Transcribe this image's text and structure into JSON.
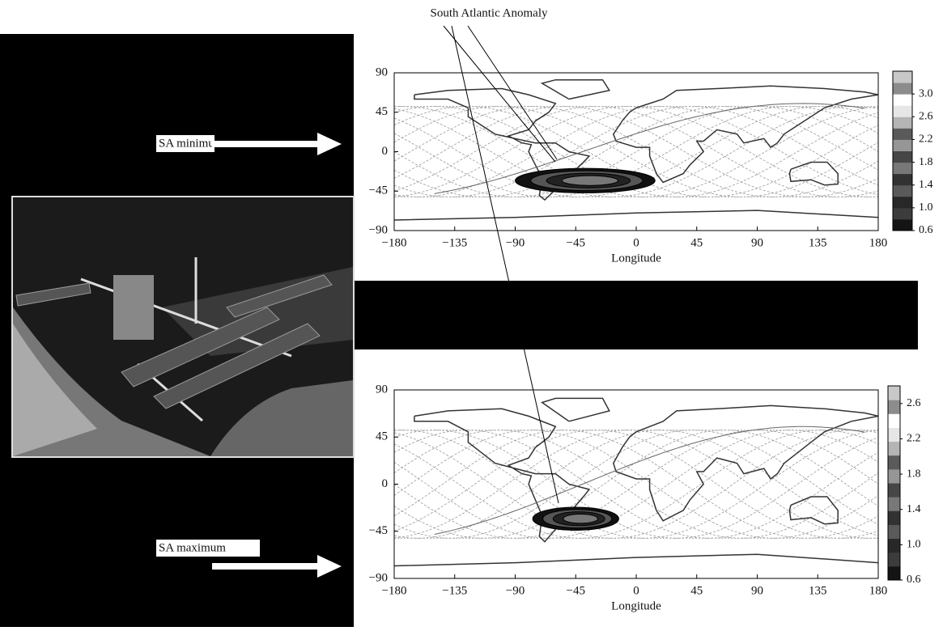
{
  "annotation": "South Atlantic Anomaly",
  "labels": [
    "SA minimum",
    "SA maximum"
  ],
  "panels": [
    {
      "xlabel": "Longitude",
      "xlim": [
        -180,
        180
      ],
      "ylim": [
        -90,
        90
      ],
      "xticks": [
        {
          "value": -180,
          "label": "−180"
        },
        {
          "value": -135,
          "label": "−135"
        },
        {
          "value": -90,
          "label": "−90"
        },
        {
          "value": -45,
          "label": "−45"
        },
        0,
        45,
        90,
        135,
        180
      ],
      "yticks": [
        90,
        45,
        0,
        {
          "value": -45,
          "label": "−45"
        },
        {
          "value": -90,
          "label": "−90"
        }
      ],
      "colorbar": {
        "lim": [
          0.6,
          3.4
        ],
        "ticks": [
          {
            "value": 3.0,
            "label": "3.0"
          },
          2.6,
          2.2,
          1.8,
          1.4,
          {
            "value": 1.0,
            "label": "1.0"
          },
          0.6
        ]
      }
    },
    {
      "xlabel": "Longitude",
      "xlim": [
        -180,
        180
      ],
      "ylim": [
        -90,
        90
      ],
      "xticks": [
        {
          "value": -180,
          "label": "−180"
        },
        {
          "value": -135,
          "label": "−135"
        },
        {
          "value": -90,
          "label": "−90"
        },
        {
          "value": -45,
          "label": "−45"
        },
        0,
        45,
        90,
        135,
        180
      ],
      "yticks": [
        90,
        45,
        0,
        {
          "value": -45,
          "label": "−45"
        },
        {
          "value": -90,
          "label": "−90"
        }
      ],
      "colorbar": {
        "lim": [
          0.6,
          2.8
        ],
        "ticks": [
          2.6,
          2.2,
          1.8,
          1.4,
          {
            "value": 1.0,
            "label": "1.0"
          },
          0.6
        ]
      }
    }
  ]
}
